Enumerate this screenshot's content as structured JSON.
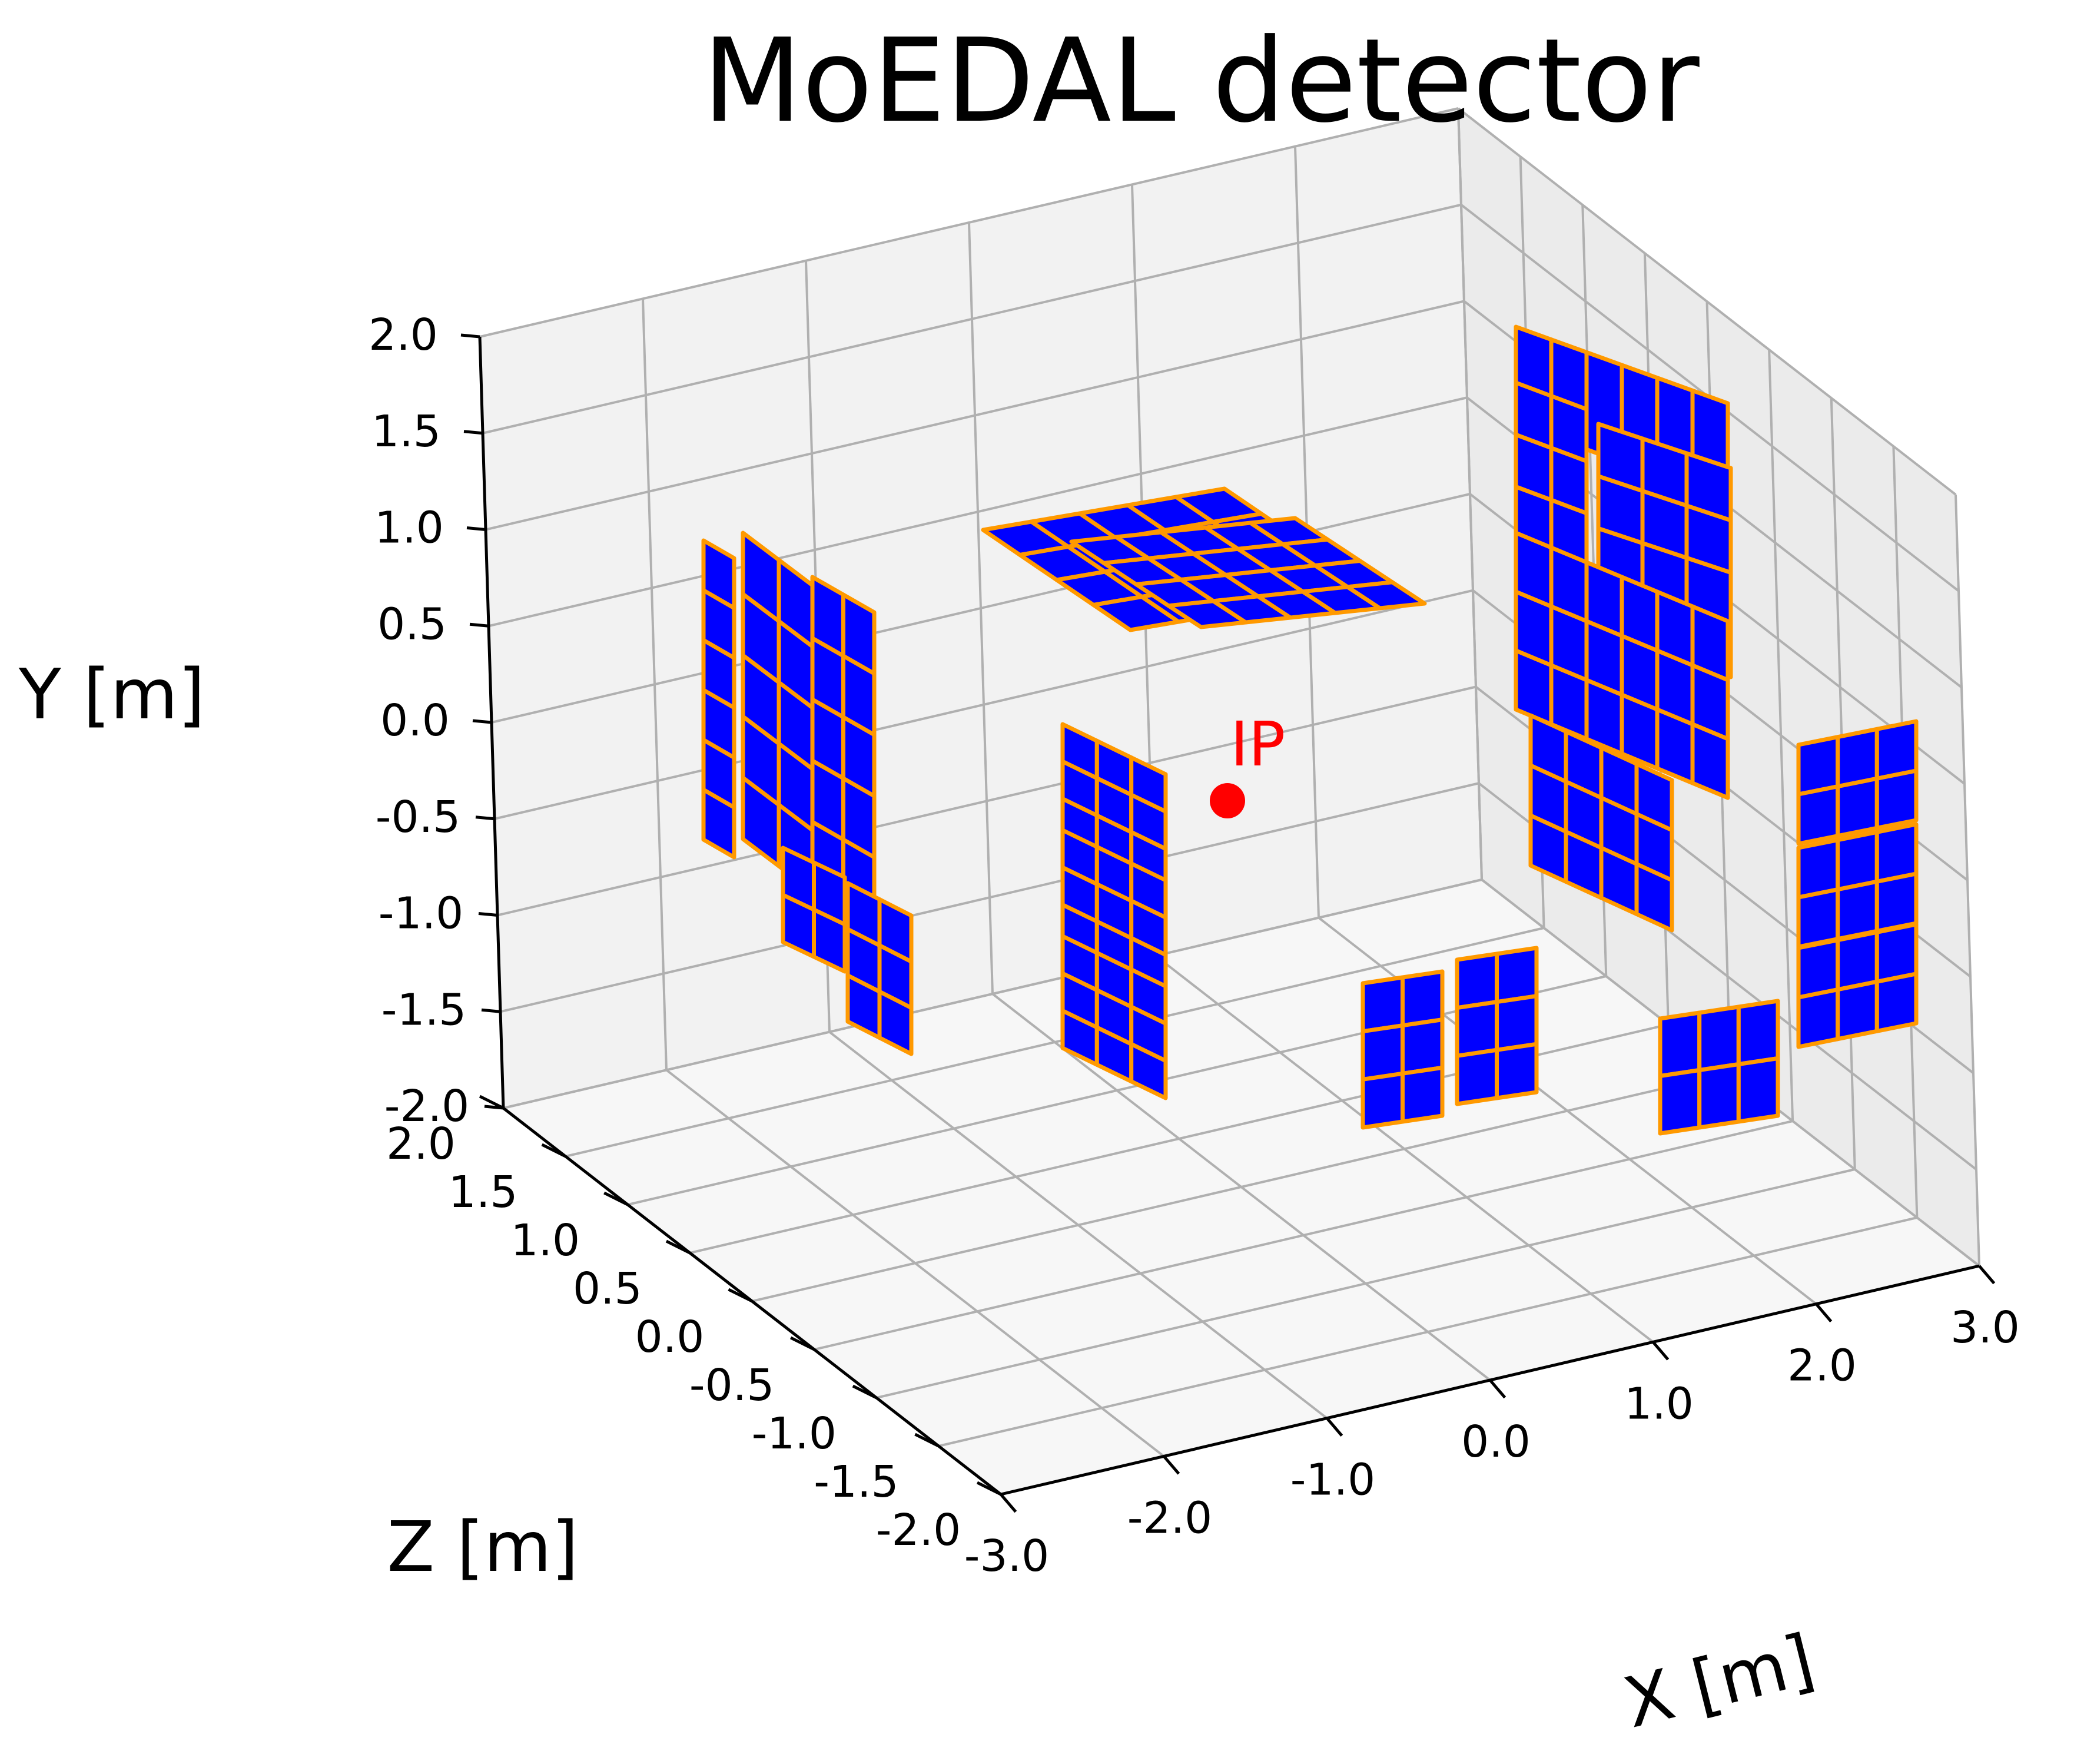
{
  "chart_data": {
    "type": "scatter",
    "title": "MoEDAL detector",
    "xlabel": "X [m]",
    "ylabel": "Y [m]",
    "zlabel": "Z [m]",
    "xlim": [
      -3.0,
      3.0
    ],
    "ylim": [
      -2.0,
      2.0
    ],
    "zlim": [
      -2.0,
      2.0
    ],
    "x_ticks": [
      "-3.0",
      "-2.0",
      "-1.0",
      "0.0",
      "1.0",
      "2.0",
      "3.0"
    ],
    "y_ticks": [
      "-2.0",
      "-1.5",
      "-1.0",
      "-0.5",
      "0.0",
      "0.5",
      "1.0",
      "1.5",
      "2.0"
    ],
    "z_ticks": [
      "2.0",
      "1.5",
      "1.0",
      "0.5",
      "0.0",
      "-0.5",
      "-1.0",
      "-1.5",
      "-2.0"
    ],
    "grid": true,
    "view": "3d",
    "ip_point": {
      "label": "IP",
      "x": 0.0,
      "y": 0.0,
      "z": 0.0,
      "color": "#ff0000"
    },
    "module_face_color": "#0000ff",
    "module_edge_color": "#ff9900",
    "pane_color": "#f2f2f2",
    "grid_color": "#b0b0b0"
  }
}
